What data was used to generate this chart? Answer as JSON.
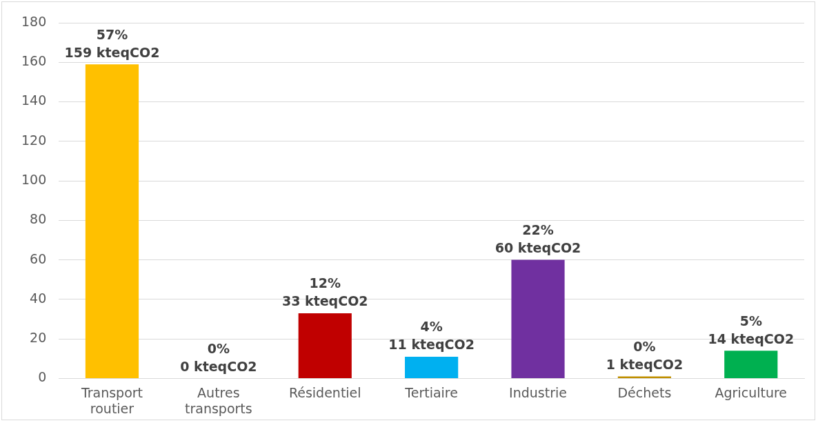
{
  "chart_data": {
    "type": "bar",
    "categories": [
      "Transport routier",
      "Autres transports",
      "Résidentiel",
      "Tertiaire",
      "Industrie",
      "Déchets",
      "Agriculture"
    ],
    "values": [
      159,
      0,
      33,
      11,
      60,
      1,
      14
    ],
    "colors": [
      "#ffc000",
      "#a5a5a5",
      "#c00000",
      "#00b0f0",
      "#7030a0",
      "#bf8f00",
      "#00b050"
    ],
    "value_labels": [
      "57%\n159 kteqCO2",
      "0%\n0 kteqCO2",
      "12%\n33 kteqCO2",
      "4%\n11 kteqCO2",
      "22%\n60 kteqCO2",
      "0%\n1 kteqCO2",
      "5%\n14 kteqCO2"
    ],
    "ylim": [
      0,
      180
    ],
    "yticks": [
      0,
      20,
      40,
      60,
      80,
      100,
      120,
      140,
      160,
      180
    ],
    "grid": "y",
    "legend": false
  }
}
